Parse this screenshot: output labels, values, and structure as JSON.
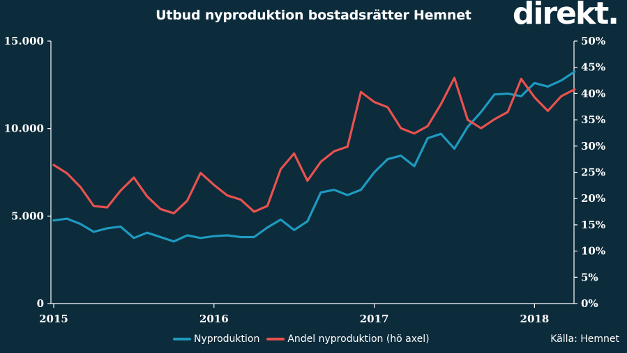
{
  "header": {
    "title": "Utbud nyproduktion  bostadsrätter Hemnet",
    "logo": "direkt."
  },
  "footer": {
    "source": "Källa: Hemnet"
  },
  "colors": {
    "background": "#0c2b3b",
    "nyproduktion": "#1e9ac0",
    "andel": "#e8524f",
    "axis": "#ffffff"
  },
  "chart_data": {
    "type": "line",
    "title": "Utbud nyproduktion  bostadsrätter Hemnet",
    "legend_position": "bottom-center",
    "grid": false,
    "x_start": "2015-01",
    "x_step": "month",
    "x_tick_labels": [
      "2015",
      "2016",
      "2017",
      "2018"
    ],
    "x_ticks_month_index": [
      0,
      12,
      24,
      36
    ],
    "y_left": {
      "range": [
        0,
        15000
      ],
      "tick_labels": [
        "0",
        "5.000",
        "10.000",
        "15.000"
      ],
      "tick_values": [
        0,
        5000,
        10000,
        15000
      ]
    },
    "y_right": {
      "range": [
        0,
        50
      ],
      "unit": "%",
      "tick_labels": [
        "0%",
        "5%",
        "10%",
        "15%",
        "20%",
        "25%",
        "30%",
        "35%",
        "40%",
        "45%",
        "50%"
      ],
      "tick_values": [
        0,
        5,
        10,
        15,
        20,
        25,
        30,
        35,
        40,
        45,
        50
      ]
    },
    "series": [
      {
        "name": "Nyproduktion",
        "axis": "left",
        "color": "#1e9ac0",
        "values": [
          4750,
          4850,
          4550,
          4100,
          4300,
          4400,
          3750,
          4050,
          3800,
          3550,
          3900,
          3750,
          3850,
          3900,
          3800,
          3800,
          4350,
          4800,
          4200,
          4700,
          6350,
          6500,
          6200,
          6500,
          7500,
          8250,
          8450,
          7850,
          9450,
          9700,
          8850,
          10100,
          10950,
          11950,
          12000,
          11850,
          12600,
          12400,
          12750,
          13250
        ]
      },
      {
        "name": "Andel nyproduktion (hö axel)",
        "axis": "right",
        "color": "#e8524f",
        "values": [
          26.4,
          24.8,
          22.2,
          18.6,
          18.3,
          21.5,
          24.0,
          20.4,
          18.0,
          17.2,
          19.6,
          24.9,
          22.6,
          20.6,
          19.8,
          17.5,
          18.6,
          25.6,
          28.6,
          23.4,
          27.0,
          29.0,
          29.9,
          40.3,
          38.4,
          37.4,
          33.4,
          32.4,
          33.8,
          38.0,
          43.0,
          35.0,
          33.4,
          35.1,
          36.5,
          42.8,
          39.3,
          36.7,
          39.5,
          40.8
        ]
      }
    ]
  }
}
